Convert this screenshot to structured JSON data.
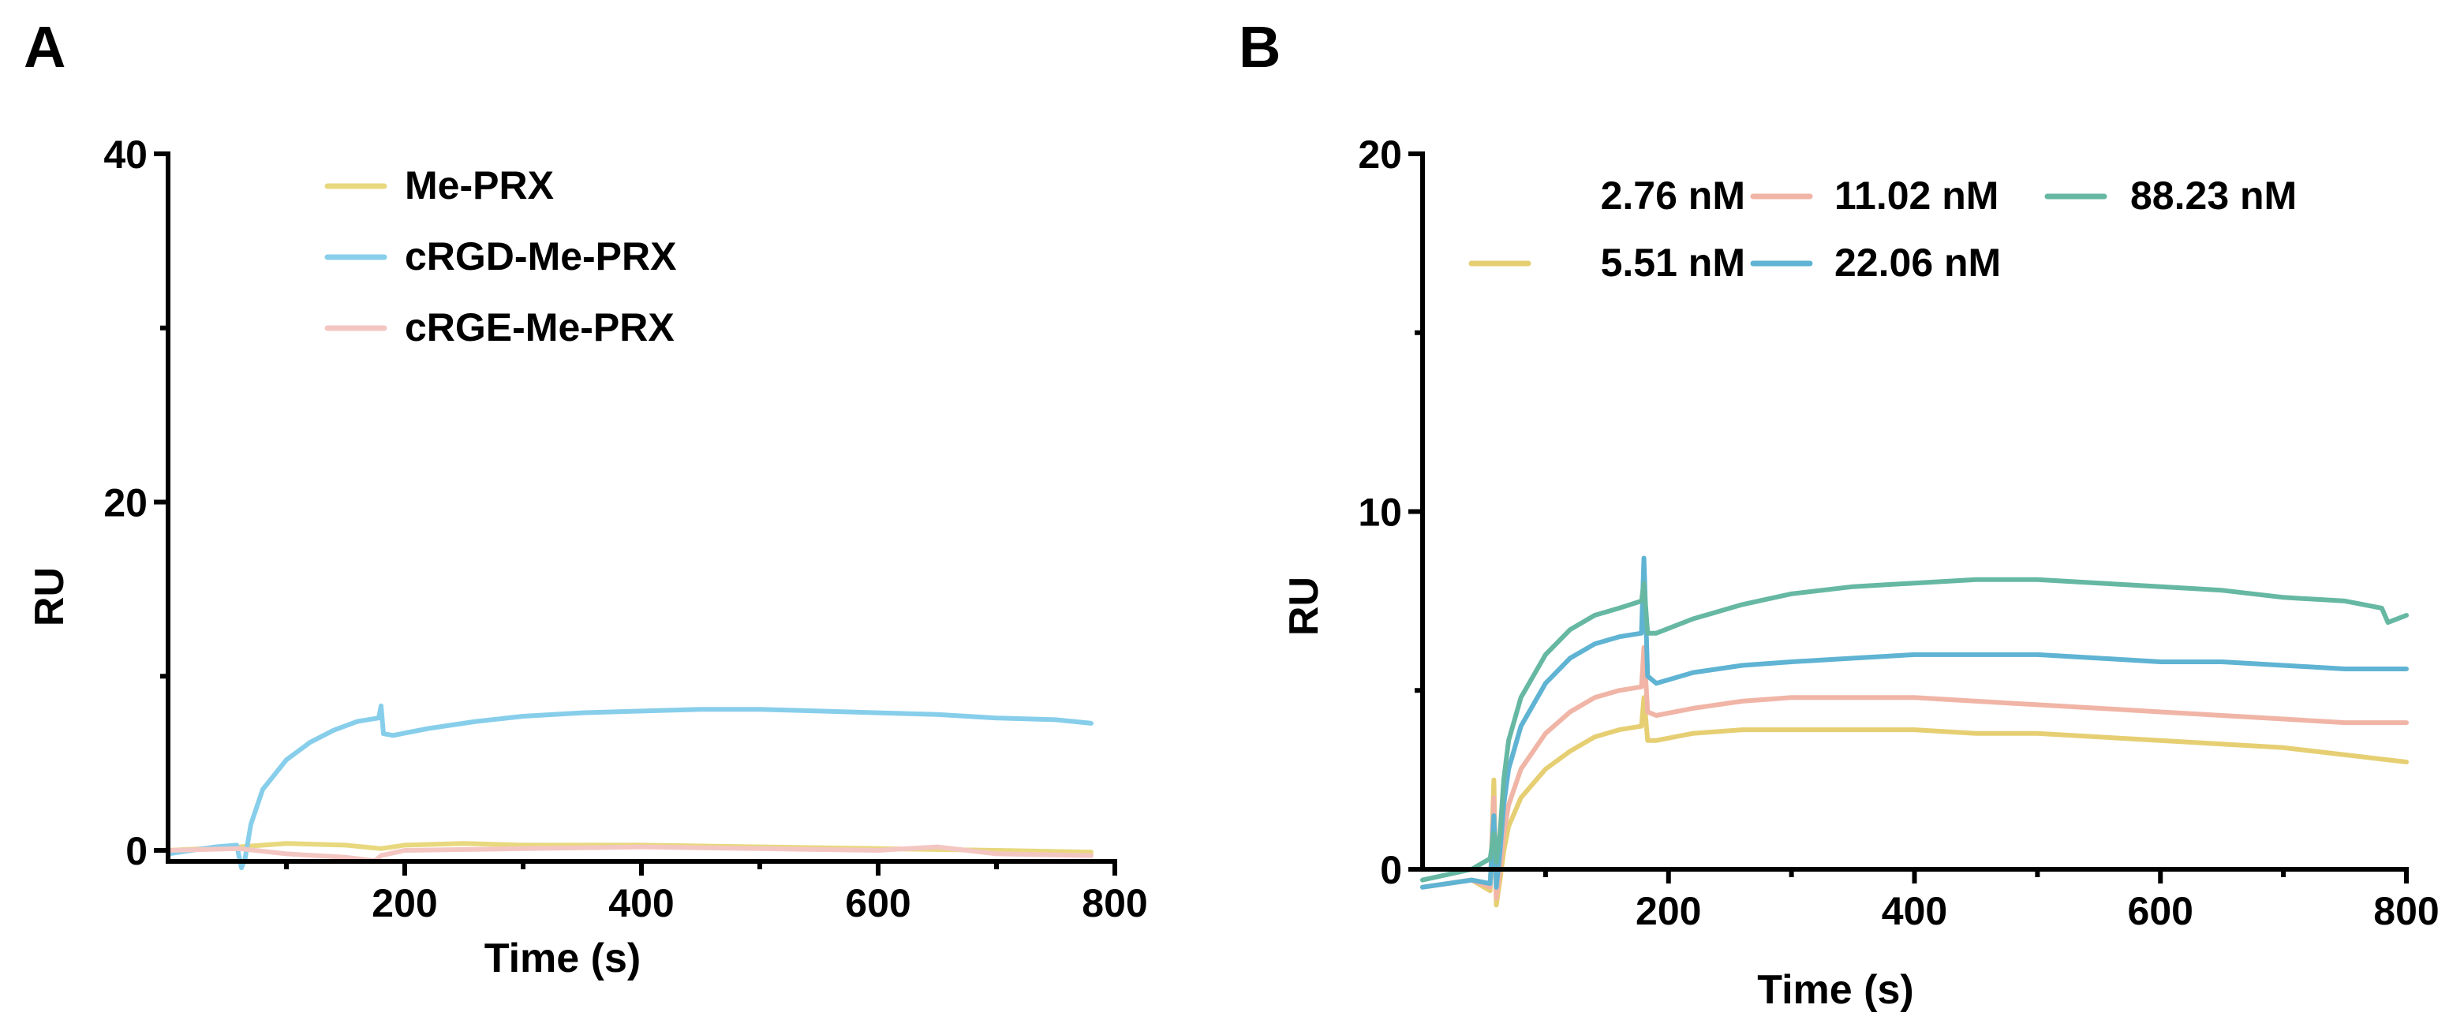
{
  "chart_data": [
    {
      "panel_label": "A",
      "type": "line",
      "xlabel": "Time (s)",
      "ylabel": "RU",
      "xlim": [
        0,
        800
      ],
      "ylim": [
        0,
        40
      ],
      "xticks": [
        200,
        400,
        600,
        800
      ],
      "yticks": [
        0,
        20,
        40
      ],
      "legend_position": "top-center",
      "series": [
        {
          "name": "Me-PRX",
          "color": "#e8d87e",
          "x": [
            0,
            60,
            100,
            150,
            180,
            200,
            250,
            300,
            400,
            500,
            600,
            700,
            780
          ],
          "y": [
            0.0,
            0.2,
            0.4,
            0.3,
            0.1,
            0.3,
            0.4,
            0.3,
            0.3,
            0.2,
            0.1,
            0.0,
            -0.1
          ]
        },
        {
          "name": "cRGD-Me-PRX",
          "color": "#87ceeb",
          "x": [
            0,
            40,
            58,
            62,
            65,
            70,
            80,
            100,
            120,
            140,
            160,
            178,
            180,
            182,
            190,
            220,
            260,
            300,
            350,
            400,
            450,
            500,
            550,
            600,
            650,
            700,
            750,
            780
          ],
          "y": [
            -0.2,
            0.2,
            0.3,
            -1.0,
            -0.5,
            1.5,
            3.5,
            5.2,
            6.2,
            6.9,
            7.4,
            7.6,
            8.3,
            6.7,
            6.6,
            7.0,
            7.4,
            7.7,
            7.9,
            8.0,
            8.1,
            8.1,
            8.0,
            7.9,
            7.8,
            7.6,
            7.5,
            7.3
          ]
        },
        {
          "name": "cRGE-Me-PRX",
          "color": "#f4c6c2",
          "x": [
            0,
            60,
            100,
            150,
            175,
            180,
            200,
            300,
            400,
            500,
            600,
            650,
            700,
            780
          ],
          "y": [
            0.0,
            0.1,
            -0.2,
            -0.4,
            -0.6,
            -0.3,
            0.0,
            0.1,
            0.2,
            0.1,
            0.0,
            0.2,
            -0.2,
            -0.3
          ]
        }
      ]
    },
    {
      "panel_label": "B",
      "type": "line",
      "xlabel": "Time (s)",
      "ylabel": "RU",
      "xlim": [
        0,
        800
      ],
      "ylim": [
        0,
        20
      ],
      "xticks": [
        200,
        400,
        600,
        800
      ],
      "yticks": [
        0,
        10,
        20
      ],
      "legend_position": "top-right",
      "series": [
        {
          "name": "2.76 nM",
          "color": "#ffffff",
          "x": [
            0,
            50,
            60,
            800
          ],
          "y": [
            -0.3,
            0.0,
            0.0,
            0.0
          ]
        },
        {
          "name": "5.51 nM",
          "color": "#e6cf73",
          "x": [
            0,
            40,
            55,
            58,
            60,
            63,
            66,
            70,
            80,
            100,
            120,
            140,
            160,
            178,
            180,
            183,
            190,
            220,
            260,
            300,
            350,
            400,
            450,
            500,
            550,
            600,
            650,
            700,
            750,
            800
          ],
          "y": [
            -0.5,
            -0.3,
            -0.6,
            2.5,
            -1.0,
            -0.3,
            0.5,
            1.2,
            2.0,
            2.8,
            3.3,
            3.7,
            3.9,
            4.0,
            4.8,
            3.6,
            3.6,
            3.8,
            3.9,
            3.9,
            3.9,
            3.9,
            3.8,
            3.8,
            3.7,
            3.6,
            3.5,
            3.4,
            3.2,
            3.0
          ]
        },
        {
          "name": "11.02 nM",
          "color": "#f0b5a6",
          "x": [
            0,
            40,
            55,
            58,
            60,
            63,
            66,
            70,
            80,
            100,
            120,
            140,
            160,
            178,
            180,
            183,
            190,
            220,
            260,
            300,
            350,
            400,
            450,
            500,
            550,
            600,
            650,
            700,
            750,
            800
          ],
          "y": [
            -0.5,
            -0.3,
            -0.5,
            2.0,
            -0.8,
            0.0,
            1.0,
            1.8,
            2.8,
            3.8,
            4.4,
            4.8,
            5.0,
            5.1,
            6.2,
            4.4,
            4.3,
            4.5,
            4.7,
            4.8,
            4.8,
            4.8,
            4.7,
            4.6,
            4.5,
            4.4,
            4.3,
            4.2,
            4.1,
            4.1
          ]
        },
        {
          "name": "22.06 nM",
          "color": "#5fb3d3",
          "x": [
            0,
            40,
            55,
            58,
            60,
            63,
            66,
            70,
            80,
            100,
            120,
            140,
            160,
            178,
            180,
            183,
            190,
            220,
            260,
            300,
            350,
            400,
            450,
            500,
            550,
            600,
            650,
            700,
            750,
            800
          ],
          "y": [
            -0.5,
            -0.3,
            -0.4,
            1.5,
            -0.5,
            0.5,
            1.8,
            2.8,
            4.0,
            5.2,
            5.9,
            6.3,
            6.5,
            6.6,
            8.7,
            5.4,
            5.2,
            5.5,
            5.7,
            5.8,
            5.9,
            6.0,
            6.0,
            6.0,
            5.9,
            5.8,
            5.8,
            5.7,
            5.6,
            5.6
          ]
        },
        {
          "name": "88.23 nM",
          "color": "#66b8a3",
          "x": [
            0,
            40,
            55,
            58,
            60,
            63,
            66,
            70,
            80,
            100,
            120,
            140,
            160,
            178,
            180,
            183,
            190,
            220,
            260,
            300,
            350,
            400,
            450,
            500,
            550,
            600,
            650,
            700,
            750,
            780,
            785,
            800
          ],
          "y": [
            -0.3,
            0.0,
            0.3,
            1.0,
            0.2,
            1.0,
            2.5,
            3.6,
            4.8,
            6.0,
            6.7,
            7.1,
            7.3,
            7.5,
            8.0,
            6.6,
            6.6,
            7.0,
            7.4,
            7.7,
            7.9,
            8.0,
            8.1,
            8.1,
            8.0,
            7.9,
            7.8,
            7.6,
            7.5,
            7.3,
            6.9,
            7.1
          ]
        }
      ]
    }
  ]
}
